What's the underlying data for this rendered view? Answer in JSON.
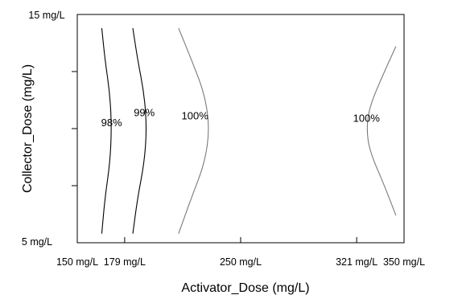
{
  "chart_data": {
    "type": "contour",
    "title": "",
    "xlabel": "Activator_Dose (mg/L)",
    "ylabel": "Collector_Dose (mg/L)",
    "xlim": [
      150,
      350
    ],
    "ylim": [
      5,
      15
    ],
    "x_ticks": [
      {
        "value": 150,
        "label": "150 mg/L"
      },
      {
        "value": 179,
        "label": "179 mg/L"
      },
      {
        "value": 250,
        "label": "250 mg/L"
      },
      {
        "value": 321,
        "label": "321 mg/L"
      },
      {
        "value": 350,
        "label": "350 mg/L"
      }
    ],
    "y_ticks": [
      {
        "value": 5,
        "label": "5 mg/L"
      },
      {
        "value": 7.5
      },
      {
        "value": 10
      },
      {
        "value": 12.5
      },
      {
        "value": 15,
        "label": "15 mg/L"
      }
    ],
    "y_end_labels": {
      "min": "5 mg/L",
      "max": "15 mg/L"
    },
    "contours": [
      {
        "label": "98%",
        "color": "#000000",
        "label_at": [
          171,
          10.1
        ],
        "points": [
          [
            165,
            14.4
          ],
          [
            167,
            13
          ],
          [
            170,
            11.5
          ],
          [
            171,
            10
          ],
          [
            170,
            8.5
          ],
          [
            167,
            7
          ],
          [
            165,
            5.4
          ]
        ]
      },
      {
        "label": "99%",
        "color": "#000000",
        "label_at": [
          191,
          10.55
        ],
        "points": [
          [
            184,
            14.4
          ],
          [
            187,
            13
          ],
          [
            191,
            11.5
          ],
          [
            192.5,
            10
          ],
          [
            191,
            8.5
          ],
          [
            187,
            7
          ],
          [
            184,
            5.4
          ]
        ]
      },
      {
        "label": "100%",
        "color": "#7a7a7a",
        "label_at": [
          222,
          10.4
        ],
        "points": [
          [
            212,
            14.4
          ],
          [
            220,
            13
          ],
          [
            228,
            11.5
          ],
          [
            231,
            10
          ],
          [
            228,
            8.5
          ],
          [
            220,
            7
          ],
          [
            212,
            5.4
          ]
        ]
      },
      {
        "label": "100%",
        "color": "#7a7a7a",
        "label_at": [
          327,
          10.3
        ],
        "points": [
          [
            345,
            13.6
          ],
          [
            338,
            12.5
          ],
          [
            329,
            11
          ],
          [
            327,
            10
          ],
          [
            329,
            9
          ],
          [
            338,
            7.5
          ],
          [
            345,
            6.2
          ]
        ]
      }
    ]
  }
}
